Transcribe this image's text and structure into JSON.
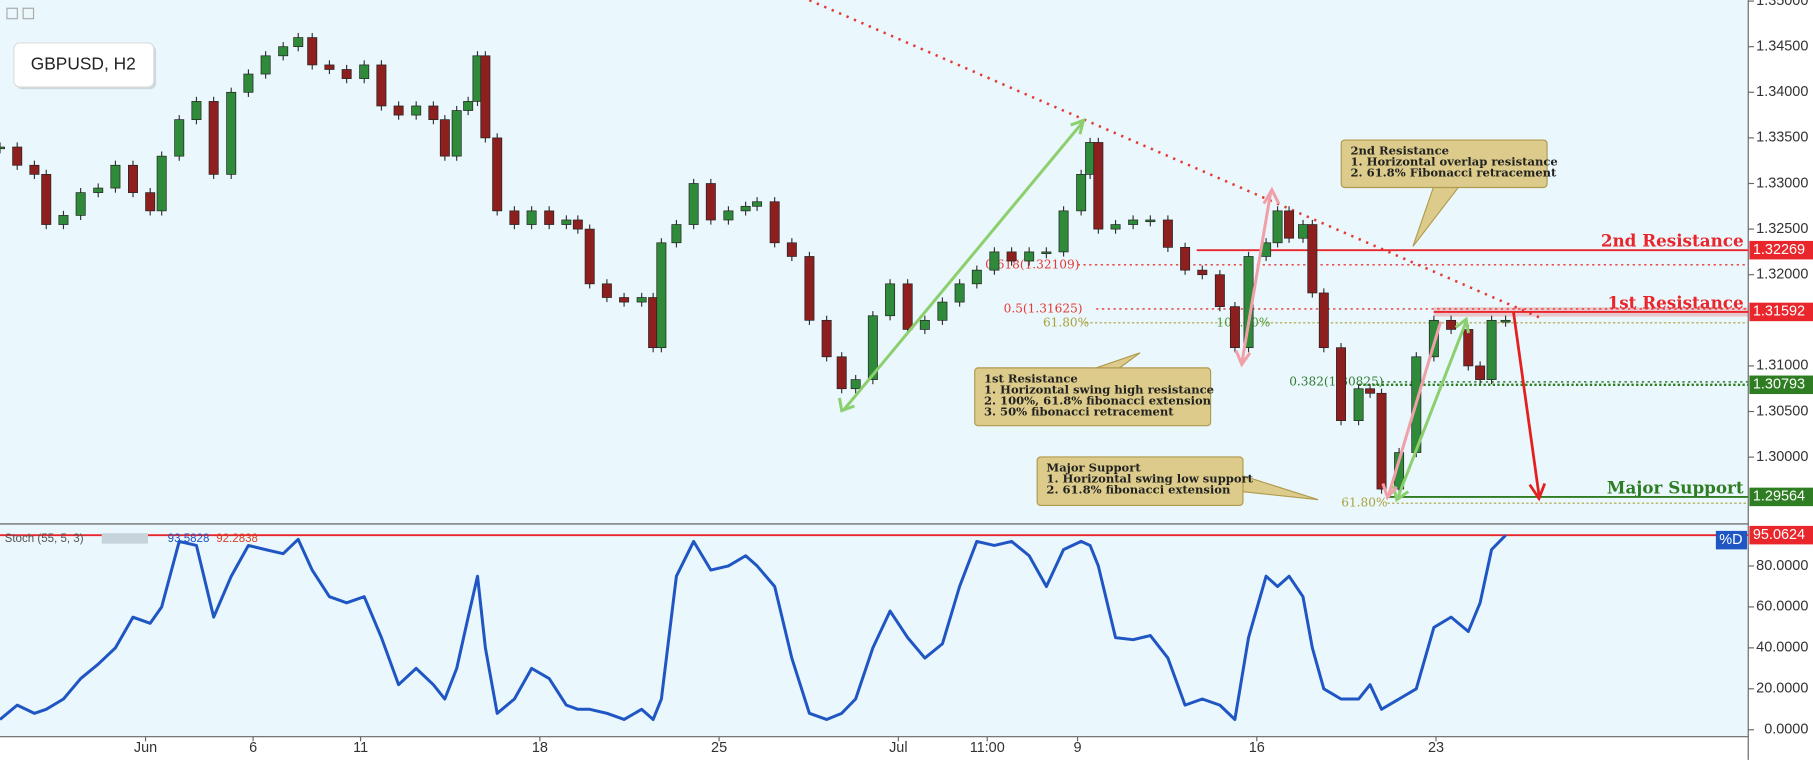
{
  "chart_data": {
    "type": "candlestick",
    "title": "GBPUSD, H2",
    "x": [
      -4.06,
      -3.58,
      -3.1,
      -2.77,
      -2.29,
      -1.81,
      -1.32,
      -0.84,
      -0.35,
      0.13,
      0.45,
      0.94,
      1.42,
      1.9,
      2.39,
      2.87,
      3.35,
      3.84,
      4.26,
      4.65,
      5.13,
      5.61,
      6.1,
      6.58,
      7.06,
      7.55,
      8.03,
      8.35,
      8.68,
      9.0,
      9.26,
      9.48,
      9.81,
      10.29,
      10.77,
      11.26,
      11.74,
      12.06,
      12.39,
      12.87,
      13.35,
      13.84,
      14.16,
      14.39,
      14.81,
      15.29,
      15.77,
      16.26,
      16.74,
      17.06,
      17.55,
      18.03,
      18.52,
      19.0,
      19.42,
      19.81,
      20.29,
      20.77,
      21.26,
      21.74,
      22.23,
      22.71,
      23.19,
      23.68,
      24.16,
      24.65,
      25.13,
      25.61,
      26.1,
      26.35,
      26.58,
      27.06,
      27.55,
      28.03,
      28.52,
      29.0,
      29.48,
      29.97,
      30.39,
      30.77,
      31.26,
      31.58,
      31.9,
      32.29,
      32.55,
      32.87,
      33.35,
      33.84,
      34.16,
      34.48,
      34.97,
      35.45,
      35.94,
      36.42,
      36.9,
      37.23,
      37.55,
      37.94
    ],
    "close": [
      1.334,
      1.332,
      1.331,
      1.3255,
      1.3265,
      1.329,
      1.3295,
      1.332,
      1.329,
      1.327,
      1.333,
      1.337,
      1.339,
      1.331,
      1.34,
      1.342,
      1.344,
      1.345,
      1.346,
      1.343,
      1.3425,
      1.3415,
      1.343,
      1.3385,
      1.3375,
      1.3385,
      1.337,
      1.333,
      1.338,
      1.339,
      1.344,
      1.335,
      1.327,
      1.3255,
      1.327,
      1.3255,
      1.326,
      1.325,
      1.319,
      1.3175,
      1.317,
      1.3175,
      1.312,
      1.3235,
      1.3255,
      1.33,
      1.326,
      1.327,
      1.3275,
      1.328,
      1.3235,
      1.322,
      1.315,
      1.311,
      1.3075,
      1.3085,
      1.3155,
      1.319,
      1.314,
      1.315,
      1.317,
      1.319,
      1.3205,
      1.3225,
      1.3215,
      1.3225,
      1.3225,
      1.327,
      1.331,
      1.3345,
      1.325,
      1.3255,
      1.326,
      1.326,
      1.323,
      1.3205,
      1.32,
      1.3165,
      1.312,
      1.322,
      1.3235,
      1.327,
      1.324,
      1.3255,
      1.318,
      1.312,
      1.304,
      1.3075,
      1.307,
      1.2965,
      1.3005,
      1.311,
      1.315,
      1.314,
      1.31,
      1.3085,
      1.315,
      1.315
    ],
    "up_color": "#2f8a3a",
    "down_color": "#8e1f1f",
    "xlim": [
      -4.06,
      44.71
    ],
    "xticks": [
      {
        "value": 0,
        "label": "Jun"
      },
      {
        "value": 3,
        "label": "6"
      },
      {
        "value": 6,
        "label": "11"
      },
      {
        "value": 11,
        "label": "18"
      },
      {
        "value": 16,
        "label": "25"
      },
      {
        "value": 21,
        "label": "Jul"
      },
      {
        "value": 23.48,
        "label": "11:00"
      },
      {
        "value": 26,
        "label": "9"
      },
      {
        "value": 31,
        "label": "16"
      },
      {
        "value": 36,
        "label": "23"
      }
    ],
    "ylim": [
      1.2928,
      1.3501
    ],
    "yticks": [
      {
        "value": 1.35,
        "label": "1.35000"
      },
      {
        "value": 1.345,
        "label": "1.34500"
      },
      {
        "value": 1.34,
        "label": "1.34000"
      },
      {
        "value": 1.335,
        "label": "1.33500"
      },
      {
        "value": 1.33,
        "label": "1.33000"
      },
      {
        "value": 1.325,
        "label": "1.32500"
      },
      {
        "value": 1.32,
        "label": "1.32000"
      },
      {
        "value": 1.31,
        "label": "1.31000"
      },
      {
        "value": 1.305,
        "label": "1.30500"
      },
      {
        "value": 1.3,
        "label": "1.30000"
      }
    ],
    "levels": [
      {
        "name": "2nd Resistance",
        "value": 1.32269,
        "color": "#e8262b"
      },
      {
        "name": "1st Resistance",
        "value": 1.31592,
        "color": "#e8262b"
      },
      {
        "value": 1.30793,
        "color": "#2e7d22"
      },
      {
        "name": "Major Support",
        "value": 1.29564,
        "color": "#2e7d22"
      }
    ],
    "fib_levels": [
      {
        "label": "0.618(1.32109)",
        "value": 1.32109,
        "color": "#e53935"
      },
      {
        "label": "0.5(1.31625)",
        "value": 1.31625,
        "color": "#e53935"
      },
      {
        "label": "0.382(1.30825)",
        "value": 1.30825,
        "color": "#2e7d32"
      }
    ],
    "fib_extension_labels": [
      "61.80%",
      "100.00%",
      "61.80%"
    ],
    "annotations": [
      {
        "title": "2nd Resistance",
        "lines": [
          "1. Horizontal overlap resistance",
          "2. 61.8% Fibonacci retracement"
        ]
      },
      {
        "title": "1st Resistance",
        "lines": [
          "1. Horizontal swing high resistance",
          "2. 100%, 61.8% fibonacci extension",
          "3. 50% fibonacci retracement"
        ]
      },
      {
        "title": "Major Support",
        "lines": [
          "1. Horizontal swing low support",
          "2. 61.8% fibonacci extension"
        ]
      }
    ],
    "indicator": {
      "type": "line",
      "name": "Stoch (55, 5, 3)",
      "legend_values": [
        93.5828,
        92.2838
      ],
      "series_label": "%D",
      "color": "#1f56c4",
      "values": [
        5,
        12,
        8,
        10,
        15,
        25,
        32,
        40,
        55,
        52,
        60,
        92,
        90,
        55,
        75,
        90,
        88,
        86,
        93,
        78,
        65,
        62,
        65,
        45,
        22,
        30,
        22,
        15,
        30,
        55,
        75,
        40,
        8,
        15,
        30,
        25,
        12,
        10,
        10,
        8,
        5,
        10,
        5,
        15,
        75,
        92,
        78,
        80,
        85,
        80,
        70,
        35,
        8,
        5,
        8,
        15,
        40,
        58,
        45,
        35,
        42,
        70,
        92,
        90,
        92,
        85,
        70,
        88,
        92,
        90,
        80,
        45,
        44,
        46,
        35,
        12,
        15,
        12,
        5,
        45,
        75,
        70,
        75,
        65,
        40,
        20,
        15,
        15,
        22,
        10,
        15,
        20,
        50,
        55,
        48,
        62,
        88,
        95
      ],
      "level": 95.0624,
      "level_color": "#e8262b",
      "ylim": [
        -3.4,
        99.4
      ],
      "yticks": [
        {
          "value": 0,
          "label": "0.0000"
        },
        {
          "value": 20,
          "label": "20.0000"
        },
        {
          "value": 40,
          "label": "40.0000"
        },
        {
          "value": 60,
          "label": "60.0000"
        },
        {
          "value": 80,
          "label": "80.0000"
        }
      ]
    }
  }
}
